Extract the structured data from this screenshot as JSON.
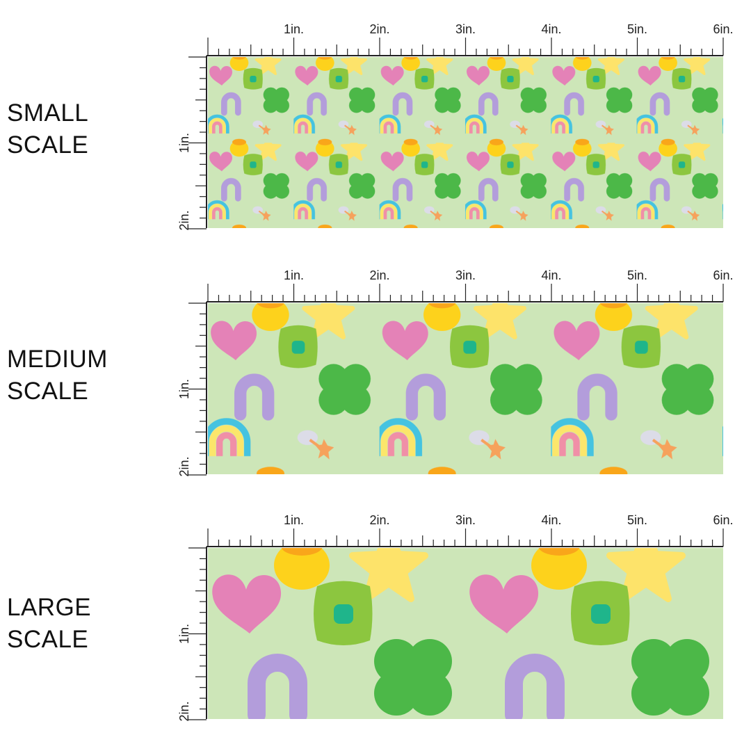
{
  "scales": [
    {
      "name": "small",
      "label_line1": "SMALL",
      "label_line2": "SCALE",
      "tile_scale": 0.3333
    },
    {
      "name": "medium",
      "label_line1": "MEDIUM",
      "label_line2": "SCALE",
      "tile_scale": 0.6667
    },
    {
      "name": "large",
      "label_line1": "LARGE",
      "label_line2": "SCALE",
      "tile_scale": 1
    }
  ],
  "ruler": {
    "horizontal_labels": [
      "1in.",
      "2in.",
      "3in.",
      "4in.",
      "5in.",
      "6in."
    ],
    "vertical_labels": [
      "1in.",
      "2in."
    ]
  },
  "colors": {
    "background": "#cde6b8",
    "heart": "#e482b7",
    "clover": "#4cb848",
    "hat_light": "#8cc63f",
    "hat_center": "#1fb58b",
    "star": "#fde36a",
    "pot": "#fdd21c",
    "pot_top": "#f9a61a",
    "horseshoe": "#b39ddb",
    "rainbow_outer": "#45c3e0",
    "rainbow_mid": "#fbe66b",
    "rainbow_inner": "#f08fa7",
    "balloon": "#f6a25c",
    "ruler": "#222222"
  },
  "motifs": [
    "heart",
    "four-leaf-clover",
    "star",
    "horseshoe",
    "rainbow",
    "pot-of-gold",
    "hat",
    "balloon"
  ]
}
